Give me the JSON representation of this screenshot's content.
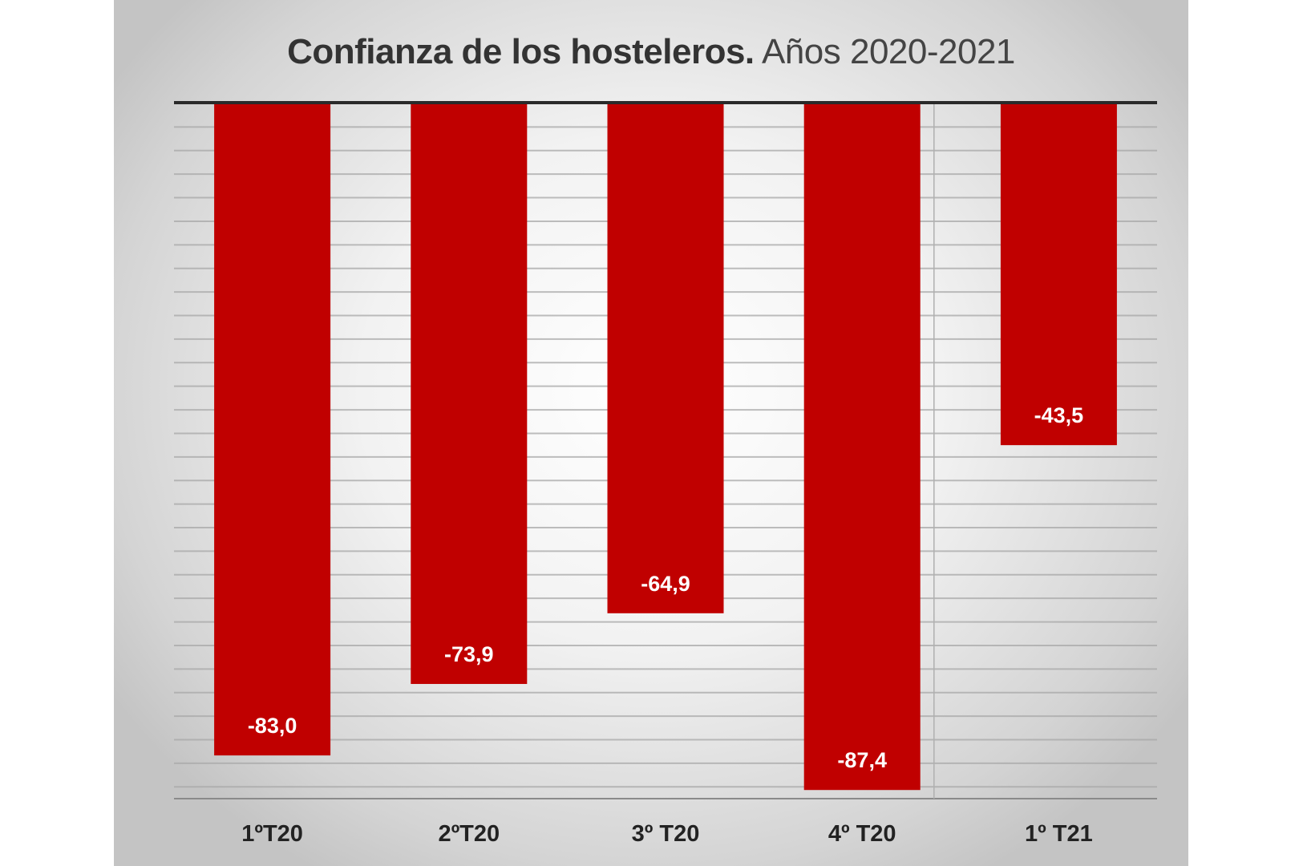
{
  "chart_data": {
    "type": "bar",
    "title": "Confianza de los hosteleros.",
    "subtitle": "Años 2020-2021",
    "categories": [
      "1ºT20",
      "2ºT20",
      "3º T20",
      "4º T20",
      "1º T21"
    ],
    "values": [
      -83.0,
      -73.9,
      -64.9,
      -87.4,
      -43.5
    ],
    "data_labels": [
      "-83,0",
      "-73,9",
      "-64,9",
      "-87,4",
      "-43,5"
    ],
    "xlabel": "",
    "ylabel": "",
    "ylim": [
      -88.5,
      0
    ],
    "grid": true,
    "grid_step": 3,
    "bar_color": "#c00000"
  }
}
